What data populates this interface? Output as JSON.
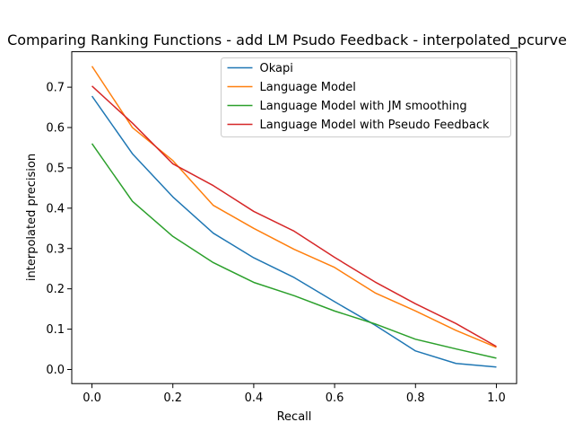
{
  "chart_data": {
    "type": "line",
    "title": "Comparing Ranking Functions - add LM Psudo Feedback - interpolated_pcurve",
    "xlabel": "Recall",
    "ylabel": "interpolated precision",
    "xlim": [
      -0.05,
      1.05
    ],
    "ylim": [
      -0.035,
      0.788
    ],
    "xticks": [
      0.0,
      0.2,
      0.4,
      0.6,
      0.8,
      1.0
    ],
    "xtick_labels": [
      "0.0",
      "0.2",
      "0.4",
      "0.6",
      "0.8",
      "1.0"
    ],
    "yticks": [
      0.0,
      0.1,
      0.2,
      0.3,
      0.4,
      0.5,
      0.6,
      0.7
    ],
    "ytick_labels": [
      "0.0",
      "0.1",
      "0.2",
      "0.3",
      "0.4",
      "0.5",
      "0.6",
      "0.7"
    ],
    "grid": false,
    "legend_position": "top-right",
    "x": [
      0.0,
      0.1,
      0.2,
      0.3,
      0.4,
      0.5,
      0.6,
      0.7,
      0.8,
      0.9,
      1.0
    ],
    "series": [
      {
        "name": "Okapi",
        "color": "#1f77b4",
        "values": [
          0.678,
          0.535,
          0.428,
          0.338,
          0.277,
          0.228,
          0.168,
          0.11,
          0.046,
          0.015,
          0.006
        ]
      },
      {
        "name": "Language Model",
        "color": "#ff7f0e",
        "values": [
          0.752,
          0.6,
          0.518,
          0.407,
          0.35,
          0.298,
          0.253,
          0.19,
          0.145,
          0.097,
          0.055
        ]
      },
      {
        "name": "Language Model with JM smoothing",
        "color": "#2ca02c",
        "values": [
          0.56,
          0.417,
          0.33,
          0.265,
          0.216,
          0.183,
          0.145,
          0.113,
          0.075,
          0.051,
          0.028
        ]
      },
      {
        "name": "Language Model with Pseudo Feedback",
        "color": "#d62728",
        "values": [
          0.703,
          0.611,
          0.51,
          0.456,
          0.392,
          0.343,
          0.278,
          0.217,
          0.163,
          0.114,
          0.057
        ]
      }
    ]
  }
}
